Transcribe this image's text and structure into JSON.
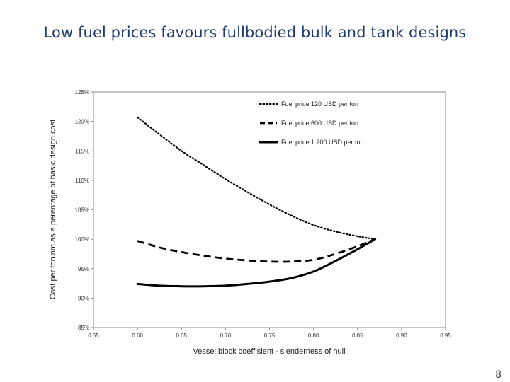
{
  "slide": {
    "title": "Low fuel prices favours fullbodied bulk and tank designs",
    "page_number": "8"
  },
  "chart_data": {
    "type": "line",
    "xlabel": "Vessel block coeffisient - slenderness of hull",
    "ylabel": "Cost per ton nm as a perentage of basic design cost",
    "xlim": [
      0.55,
      0.95
    ],
    "ylim": [
      85,
      125
    ],
    "x_ticks": [
      "0.55",
      "0.60",
      "0.65",
      "0.70",
      "0.75",
      "0.80",
      "0.85",
      "0.90",
      "0.95"
    ],
    "y_ticks": [
      "85%",
      "90%",
      "95%",
      "100%",
      "105%",
      "110%",
      "115%",
      "120%",
      "125%"
    ],
    "grid": false,
    "legend_position": "top-right",
    "series": [
      {
        "name": "Fuel price 120 USD per ton",
        "style": "dotted",
        "x": [
          0.6,
          0.625,
          0.65,
          0.675,
          0.7,
          0.725,
          0.75,
          0.775,
          0.8,
          0.825,
          0.85,
          0.87
        ],
        "y": [
          120.7,
          117.8,
          115.0,
          112.6,
          110.2,
          108.0,
          105.9,
          104.0,
          102.4,
          101.3,
          100.5,
          100.0
        ]
      },
      {
        "name": "Fuel price 600 USD per ton",
        "style": "dashed",
        "x": [
          0.6,
          0.625,
          0.65,
          0.675,
          0.7,
          0.725,
          0.75,
          0.775,
          0.8,
          0.825,
          0.85,
          0.87
        ],
        "y": [
          99.7,
          98.6,
          97.8,
          97.2,
          96.7,
          96.4,
          96.2,
          96.2,
          96.5,
          97.5,
          98.8,
          100.0
        ]
      },
      {
        "name": "Fuel price 1 200 USD per ton",
        "style": "solid",
        "x": [
          0.6,
          0.625,
          0.65,
          0.675,
          0.7,
          0.725,
          0.75,
          0.775,
          0.8,
          0.825,
          0.85,
          0.87
        ],
        "y": [
          92.4,
          92.1,
          92.0,
          92.0,
          92.1,
          92.4,
          92.8,
          93.4,
          94.5,
          96.3,
          98.3,
          100.0
        ]
      }
    ]
  }
}
